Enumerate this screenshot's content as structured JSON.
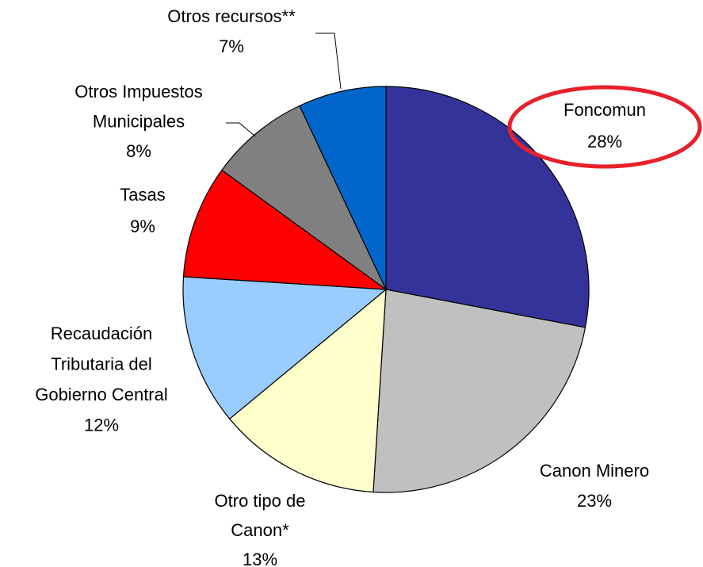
{
  "chart_data": {
    "type": "pie",
    "categories": [
      [
        "Foncomun"
      ],
      [
        "Canon Minero"
      ],
      [
        "Otro tipo de",
        "Canon*"
      ],
      [
        "Recaudación",
        "Tributaria del",
        "Gobierno Central"
      ],
      [
        "Tasas"
      ],
      [
        "Otros Impuestos",
        "Municipales"
      ],
      [
        "Otros recursos**"
      ]
    ],
    "values": [
      28,
      23,
      13,
      12,
      9,
      8,
      7
    ],
    "value_labels": [
      "28%",
      "23%",
      "13%",
      "12%",
      "9%",
      "8%",
      "7%"
    ],
    "colors": [
      "#333399",
      "#c0c0c0",
      "#ffffcc",
      "#99ccff",
      "#ff0000",
      "#808080",
      "#0066cc"
    ]
  }
}
